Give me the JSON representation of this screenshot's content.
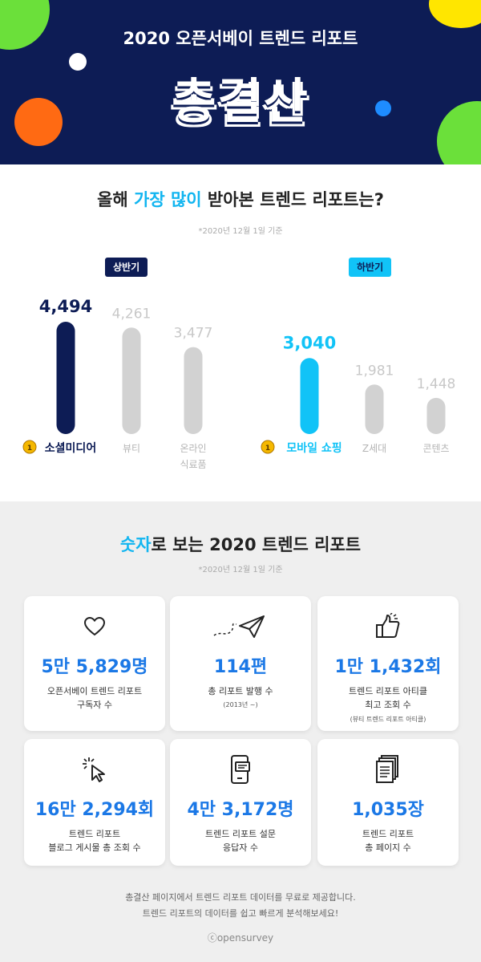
{
  "header": {
    "subtitle": "2020 오픈서베이 트렌드 리포트",
    "title": "총결산"
  },
  "section1": {
    "title_prefix": "올해 ",
    "title_highlight": "가장 많이",
    "title_suffix": " 받아본 트렌드 리포트는?",
    "note": "*2020년 12월 1일 기준",
    "badge_first": "상반기",
    "badge_second": "하반기"
  },
  "chart_data": [
    {
      "type": "bar",
      "name": "상반기",
      "categories": [
        "소셜미디어",
        "뷰티",
        "온라인 식료품"
      ],
      "values": [
        4494,
        4261,
        3477
      ],
      "value_labels": [
        "4,494",
        "4,261",
        "3,477"
      ],
      "category_lines": [
        [
          "소셜미디어"
        ],
        [
          "뷰티"
        ],
        [
          "온라인",
          "식료품"
        ]
      ],
      "highlight_color": "#0d1c55",
      "other_color": "#d2d2d2"
    },
    {
      "type": "bar",
      "name": "하반기",
      "categories": [
        "모바일 쇼핑",
        "Z세대",
        "콘텐츠"
      ],
      "values": [
        3040,
        1981,
        1448
      ],
      "value_labels": [
        "3,040",
        "1,981",
        "1,448"
      ],
      "category_lines": [
        [
          "모바일 쇼핑"
        ],
        [
          "Z세대"
        ],
        [
          "콘텐츠"
        ]
      ],
      "highlight_color": "#11c3f7",
      "other_color": "#d2d2d2"
    }
  ],
  "section2": {
    "title_highlight": "숫자",
    "title_suffix": "로 보는 2020 트렌드 리포트",
    "note": "*2020년 12월 1일 기준",
    "cards": [
      {
        "icon": "heart-icon",
        "number": "5만 5,829명",
        "label1": "오픈서베이 트렌드 리포트",
        "label2": "구독자 수",
        "small": ""
      },
      {
        "icon": "paper-plane-icon",
        "number": "114편",
        "label1": "총 리포트 발행 수",
        "label2": "",
        "small": "(2013년 ~)"
      },
      {
        "icon": "thumbs-up-icon",
        "number": "1만 1,432회",
        "label1": "트렌드 리포트 아티클",
        "label2": "최고 조회 수",
        "small": "(뷰티 트렌드 리포트 아티클)"
      },
      {
        "icon": "cursor-click-icon",
        "number": "16만 2,294회",
        "label1": "트렌드 리포트",
        "label2": "블로그 게시물 총 조회 수",
        "small": ""
      },
      {
        "icon": "mobile-chat-icon",
        "number": "4만 3,172명",
        "label1": "트렌드 리포트 설문",
        "label2": "응답자 수",
        "small": ""
      },
      {
        "icon": "document-stack-icon",
        "number": "1,035장",
        "label1": "트렌드 리포트",
        "label2": "총 페이지 수",
        "small": ""
      }
    ],
    "footer1": "총결산 페이지에서 트렌드 리포트 데이터를 무료로 제공합니다.",
    "footer2": "트렌드 리포트의 데이터를 쉽고 빠르게 분석해보세요!",
    "logo": "ⓒopensurvey"
  }
}
